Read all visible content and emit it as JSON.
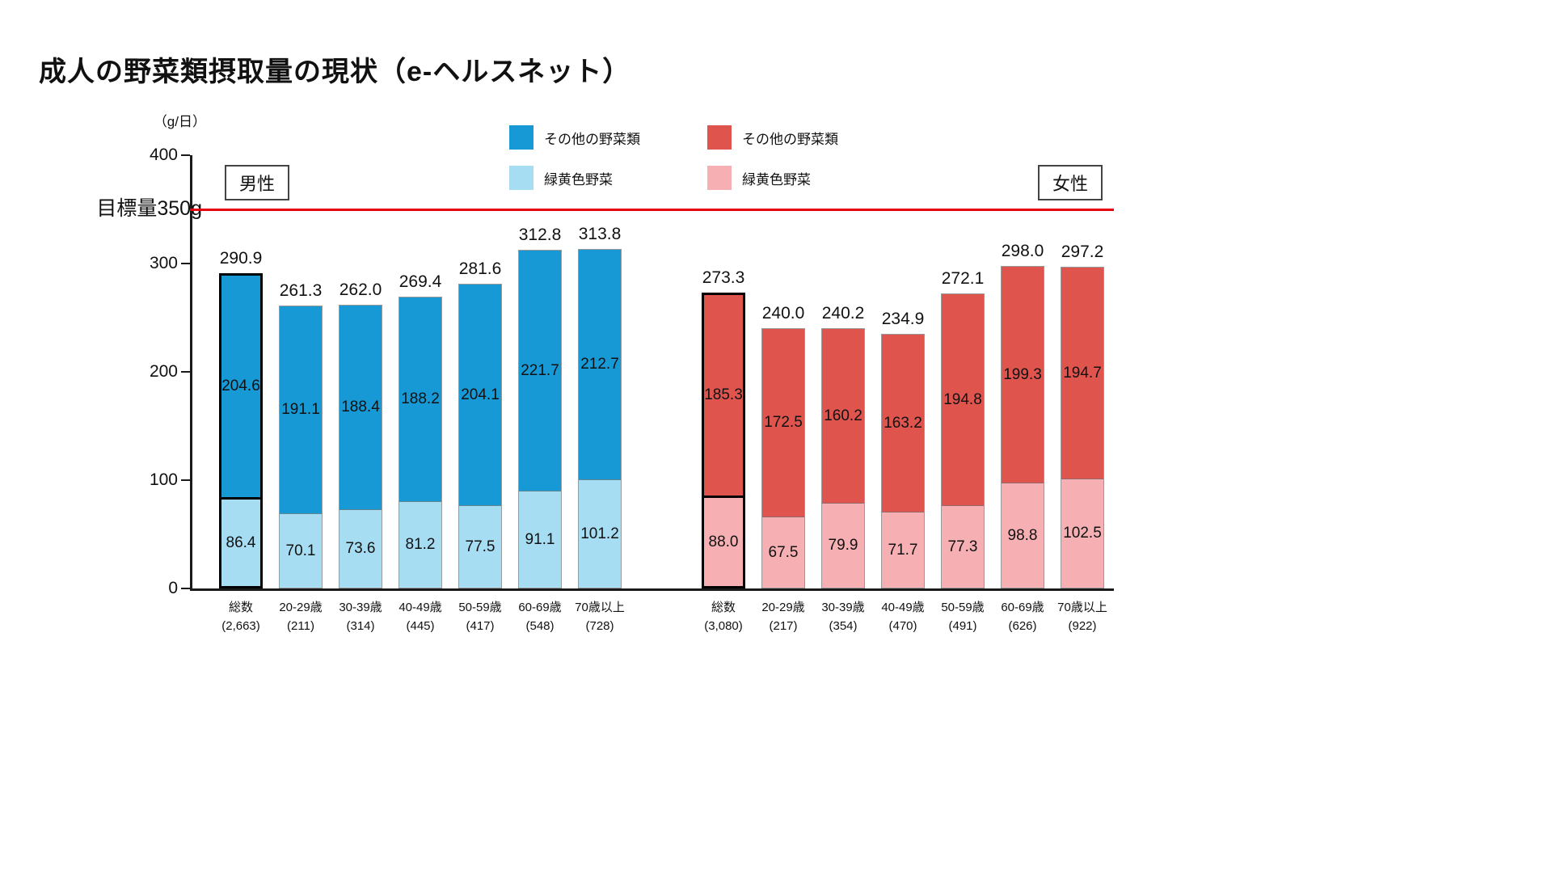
{
  "page_title": "成人の野菜類摂取量の現状（e-ヘルスネット）",
  "chart_data": {
    "type": "bar",
    "stacked": true,
    "unit_label": "（g/日）",
    "ylim": [
      0,
      400
    ],
    "yticks": [
      0,
      100,
      200,
      300,
      400
    ],
    "grid": false,
    "legend_position": "top-center",
    "target_line": {
      "value": 350,
      "label": "目標量350g",
      "color": "#e60012"
    },
    "groups": [
      {
        "id": "male",
        "name": "男性",
        "colors": {
          "other": "#1799d6",
          "green": "#a6ddf2"
        },
        "legend": [
          {
            "label": "その他の野菜類",
            "color": "#1799d6"
          },
          {
            "label": "緑黄色野菜",
            "color": "#a6ddf2"
          }
        ],
        "categories": [
          "総数",
          "20-29歳",
          "30-39歳",
          "40-49歳",
          "50-59歳",
          "60-69歳",
          "70歳以上"
        ],
        "counts": [
          "(2,663)",
          "(211)",
          "(314)",
          "(445)",
          "(417)",
          "(548)",
          "(728)"
        ],
        "totals": [
          290.9,
          261.3,
          262.0,
          269.4,
          281.6,
          312.8,
          313.8
        ],
        "series": [
          {
            "name": "その他の野菜類",
            "values": [
              204.6,
              191.1,
              188.4,
              188.2,
              204.1,
              221.7,
              212.7
            ]
          },
          {
            "name": "緑黄色野菜",
            "values": [
              86.4,
              70.1,
              73.6,
              81.2,
              77.5,
              91.1,
              101.2
            ]
          }
        ]
      },
      {
        "id": "female",
        "name": "女性",
        "colors": {
          "other": "#e0544e",
          "green": "#f6b0b4"
        },
        "legend": [
          {
            "label": "その他の野菜類",
            "color": "#e0544e"
          },
          {
            "label": "緑黄色野菜",
            "color": "#f6b0b4"
          }
        ],
        "categories": [
          "総数",
          "20-29歳",
          "30-39歳",
          "40-49歳",
          "50-59歳",
          "60-69歳",
          "70歳以上"
        ],
        "counts": [
          "(3,080)",
          "(217)",
          "(354)",
          "(470)",
          "(491)",
          "(626)",
          "(922)"
        ],
        "totals": [
          273.3,
          240.0,
          240.2,
          234.9,
          272.1,
          298.0,
          297.2
        ],
        "series": [
          {
            "name": "その他の野菜類",
            "values": [
              185.3,
              172.5,
              160.2,
              163.2,
              194.8,
              199.3,
              194.7
            ]
          },
          {
            "name": "緑黄色野菜",
            "values": [
              88.0,
              67.5,
              79.9,
              71.7,
              77.3,
              98.8,
              102.5
            ]
          }
        ]
      }
    ]
  }
}
